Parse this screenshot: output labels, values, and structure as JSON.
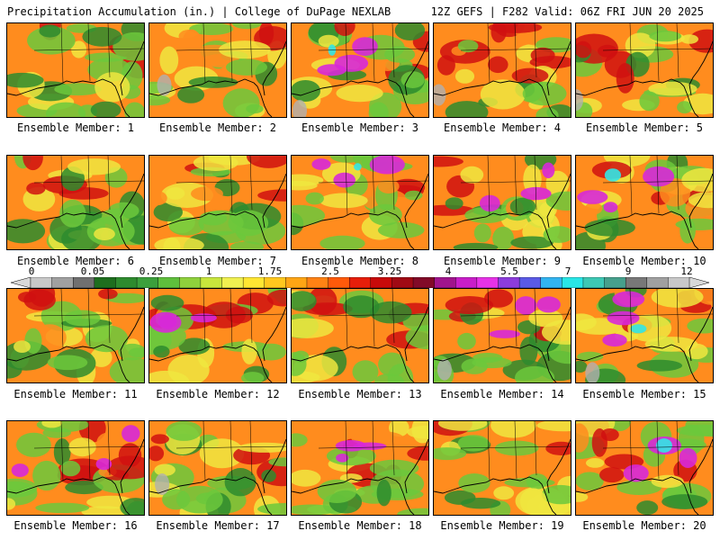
{
  "header": {
    "title_left": "Precipitation Accumulation (in.) | College of DuPage NEXLAB",
    "title_right": "12Z GEFS | F282 Valid: 06Z FRI JUN 20 2025"
  },
  "colorbar": {
    "labels": [
      "0",
      "0.05",
      "0.25",
      "1",
      "1.75",
      "2.5",
      "3.25",
      "4",
      "5.5",
      "7",
      "9",
      "12"
    ],
    "colors": [
      "#c8c8c8",
      "#a0a0a0",
      "#707070",
      "#1e6e1e",
      "#2e8b2e",
      "#3ca03c",
      "#5fbf3c",
      "#8fd13c",
      "#c8e63c",
      "#f0f050",
      "#ffe632",
      "#ffc81e",
      "#ffa514",
      "#ff8214",
      "#ff5a0a",
      "#e61e0a",
      "#c80a0a",
      "#a00a14",
      "#820a28",
      "#a0148c",
      "#c81ec8",
      "#e632e6",
      "#8c3cdc",
      "#5a5ae6",
      "#32b4f0",
      "#28e6e6",
      "#3cc8b4",
      "#46a08c",
      "#787878",
      "#a0a0a0",
      "#c8c8c8"
    ],
    "arrow_color": "#d8d8d8"
  },
  "members": [
    {
      "label": "Ensemble Member: 1"
    },
    {
      "label": "Ensemble Member: 2"
    },
    {
      "label": "Ensemble Member: 3"
    },
    {
      "label": "Ensemble Member: 4"
    },
    {
      "label": "Ensemble Member: 5"
    },
    {
      "label": "Ensemble Member: 6"
    },
    {
      "label": "Ensemble Member: 7"
    },
    {
      "label": "Ensemble Member: 8"
    },
    {
      "label": "Ensemble Member: 9"
    },
    {
      "label": "Ensemble Member: 10"
    },
    {
      "label": "Ensemble Member: 11"
    },
    {
      "label": "Ensemble Member: 12"
    },
    {
      "label": "Ensemble Member: 13"
    },
    {
      "label": "Ensemble Member: 14"
    },
    {
      "label": "Ensemble Member: 15"
    },
    {
      "label": "Ensemble Member: 16"
    },
    {
      "label": "Ensemble Member: 17"
    },
    {
      "label": "Ensemble Member: 18"
    },
    {
      "label": "Ensemble Member: 19"
    },
    {
      "label": "Ensemble Member: 20"
    }
  ],
  "map_colors": {
    "heavy": "#d01010",
    "moderate": "#ff8c1e",
    "light": "#f0e640",
    "very_light": "#6cc83c",
    "dry": "#2e8b2e",
    "extreme": "#d828d8",
    "max": "#32e6e6",
    "trace": "#b0b0b0",
    "coastline": "#000000"
  }
}
